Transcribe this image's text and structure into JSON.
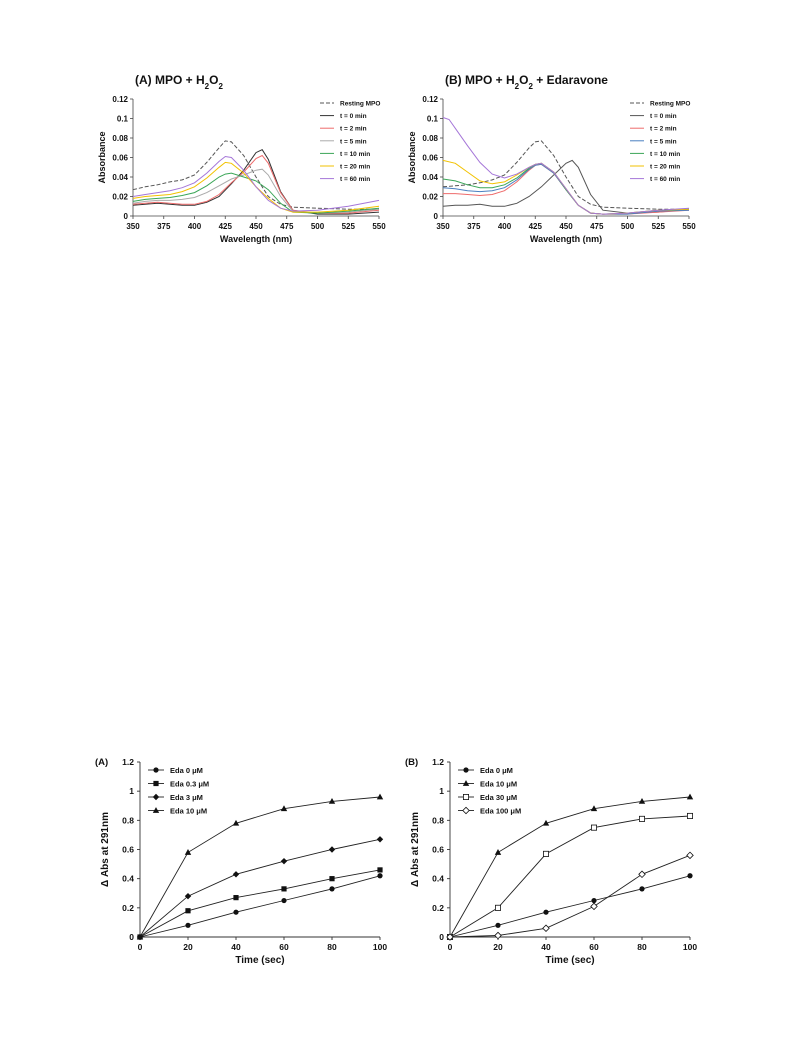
{
  "chart_data": [
    {
      "type": "line",
      "panel": "A",
      "title": "(A) MPO + H",
      "title_sub": "2",
      "title_mid": "O",
      "title_sub2": "2",
      "title_tail": "",
      "xlabel": "Wavelength  (nm)",
      "ylabel": "Absorbance",
      "xlim": [
        350,
        550
      ],
      "ylim": [
        0,
        0.12
      ],
      "xticks": [
        "350",
        "375",
        "400",
        "425",
        "450",
        "475",
        "500",
        "525",
        "550"
      ],
      "yticks": [
        "0",
        "0.02",
        "0.04",
        "0.06",
        "0.08",
        "0.1",
        "0.12"
      ],
      "legend_position": "top-right",
      "series": [
        {
          "name": "Resting MPO",
          "color": "#555555",
          "dash": true,
          "x": [
            350,
            360,
            370,
            380,
            390,
            400,
            410,
            420,
            425,
            430,
            440,
            450,
            455,
            460,
            470,
            480,
            500,
            525,
            550
          ],
          "y": [
            0.027,
            0.03,
            0.032,
            0.035,
            0.037,
            0.042,
            0.055,
            0.07,
            0.077,
            0.076,
            0.062,
            0.04,
            0.03,
            0.02,
            0.012,
            0.009,
            0.008,
            0.007,
            0.007
          ]
        },
        {
          "name": "t = 0 min",
          "color": "#333333",
          "dash": false,
          "x": [
            350,
            360,
            370,
            380,
            390,
            400,
            410,
            420,
            430,
            440,
            450,
            455,
            460,
            470,
            480,
            500,
            525,
            550
          ],
          "y": [
            0.011,
            0.012,
            0.013,
            0.012,
            0.011,
            0.011,
            0.014,
            0.02,
            0.033,
            0.047,
            0.065,
            0.068,
            0.058,
            0.025,
            0.006,
            0.002,
            0.002,
            0.004
          ]
        },
        {
          "name": "t = 2 min",
          "color": "#ee6b6b",
          "dash": false,
          "x": [
            350,
            360,
            370,
            380,
            390,
            400,
            410,
            420,
            430,
            440,
            450,
            455,
            460,
            470,
            480,
            500,
            525,
            550
          ],
          "y": [
            0.012,
            0.013,
            0.014,
            0.013,
            0.012,
            0.012,
            0.015,
            0.022,
            0.034,
            0.045,
            0.059,
            0.062,
            0.054,
            0.024,
            0.006,
            0.003,
            0.003,
            0.006
          ]
        },
        {
          "name": "t = 5 min",
          "color": "#aaaaaa",
          "dash": false,
          "x": [
            350,
            360,
            370,
            380,
            390,
            400,
            410,
            420,
            430,
            440,
            450,
            455,
            460,
            470,
            480,
            500,
            525,
            550
          ],
          "y": [
            0.013,
            0.015,
            0.016,
            0.016,
            0.017,
            0.019,
            0.024,
            0.031,
            0.038,
            0.042,
            0.047,
            0.048,
            0.042,
            0.02,
            0.005,
            0.003,
            0.004,
            0.007
          ]
        },
        {
          "name": "t = 10 min",
          "color": "#3aa657",
          "dash": false,
          "x": [
            350,
            360,
            370,
            380,
            390,
            400,
            410,
            420,
            425,
            430,
            440,
            450,
            460,
            470,
            480,
            500,
            525,
            550
          ],
          "y": [
            0.015,
            0.017,
            0.018,
            0.019,
            0.021,
            0.024,
            0.031,
            0.04,
            0.043,
            0.044,
            0.04,
            0.036,
            0.027,
            0.013,
            0.004,
            0.003,
            0.005,
            0.008
          ]
        },
        {
          "name": "t = 20 min",
          "color": "#f2c200",
          "dash": false,
          "x": [
            350,
            360,
            370,
            380,
            390,
            400,
            410,
            420,
            425,
            430,
            440,
            450,
            460,
            470,
            480,
            500,
            525,
            550
          ],
          "y": [
            0.018,
            0.02,
            0.021,
            0.022,
            0.025,
            0.03,
            0.039,
            0.05,
            0.055,
            0.054,
            0.044,
            0.03,
            0.018,
            0.008,
            0.004,
            0.004,
            0.006,
            0.01
          ]
        },
        {
          "name": "t = 60 min",
          "color": "#a576d8",
          "dash": false,
          "x": [
            350,
            360,
            370,
            380,
            390,
            400,
            410,
            420,
            425,
            430,
            440,
            450,
            460,
            470,
            480,
            500,
            525,
            550
          ],
          "y": [
            0.02,
            0.022,
            0.024,
            0.026,
            0.029,
            0.034,
            0.044,
            0.056,
            0.061,
            0.06,
            0.047,
            0.03,
            0.016,
            0.008,
            0.005,
            0.006,
            0.01,
            0.016
          ]
        }
      ]
    },
    {
      "type": "line",
      "panel": "B",
      "title": "(B) MPO + H",
      "title_sub": "2",
      "title_mid": "O",
      "title_sub2": "2",
      "title_tail": " + Edaravone",
      "xlabel": "Wavelength  (nm)",
      "ylabel": "Absorbance",
      "xlim": [
        350,
        550
      ],
      "ylim": [
        0,
        0.12
      ],
      "xticks": [
        "350",
        "375",
        "400",
        "425",
        "450",
        "475",
        "500",
        "525",
        "550"
      ],
      "yticks": [
        "0",
        "0.02",
        "0.04",
        "0.06",
        "0.08",
        "0.1",
        "0.12"
      ],
      "legend_position": "top-right",
      "series": [
        {
          "name": "Resting MPO",
          "color": "#555555",
          "dash": true,
          "x": [
            350,
            360,
            370,
            380,
            390,
            400,
            410,
            420,
            425,
            430,
            440,
            450,
            455,
            460,
            470,
            480,
            500,
            525,
            550
          ],
          "y": [
            0.03,
            0.031,
            0.032,
            0.034,
            0.037,
            0.042,
            0.055,
            0.07,
            0.076,
            0.077,
            0.062,
            0.04,
            0.03,
            0.02,
            0.012,
            0.009,
            0.008,
            0.007,
            0.007
          ]
        },
        {
          "name": "t = 0 min",
          "color": "#555555",
          "dash": false,
          "x": [
            350,
            360,
            370,
            380,
            390,
            400,
            410,
            420,
            430,
            440,
            450,
            455,
            460,
            470,
            480,
            500,
            525,
            550
          ],
          "y": [
            0.01,
            0.011,
            0.011,
            0.012,
            0.01,
            0.01,
            0.013,
            0.02,
            0.03,
            0.042,
            0.054,
            0.057,
            0.05,
            0.022,
            0.006,
            0.003,
            0.004,
            0.007
          ]
        },
        {
          "name": "t = 2 min",
          "color": "#ee6b6b",
          "dash": false,
          "x": [
            350,
            360,
            370,
            380,
            390,
            400,
            410,
            420,
            425,
            430,
            440,
            450,
            460,
            470,
            480,
            500,
            525,
            550
          ],
          "y": [
            0.023,
            0.023,
            0.022,
            0.021,
            0.022,
            0.026,
            0.035,
            0.047,
            0.052,
            0.053,
            0.044,
            0.027,
            0.011,
            0.003,
            0.002,
            0.002,
            0.004,
            0.006
          ]
        },
        {
          "name": "t = 5 min",
          "color": "#4a7fc0",
          "dash": false,
          "x": [
            350,
            360,
            370,
            380,
            390,
            400,
            410,
            420,
            425,
            430,
            440,
            450,
            460,
            470,
            480,
            500,
            525,
            550
          ],
          "y": [
            0.029,
            0.028,
            0.026,
            0.025,
            0.026,
            0.029,
            0.037,
            0.048,
            0.052,
            0.053,
            0.044,
            0.027,
            0.011,
            0.003,
            0.002,
            0.002,
            0.005,
            0.006
          ]
        },
        {
          "name": "t = 10 min",
          "color": "#3aa657",
          "dash": false,
          "x": [
            350,
            360,
            370,
            380,
            390,
            400,
            410,
            420,
            425,
            430,
            440,
            450,
            460,
            470,
            480,
            500,
            525,
            550
          ],
          "y": [
            0.038,
            0.036,
            0.032,
            0.029,
            0.029,
            0.032,
            0.039,
            0.049,
            0.053,
            0.054,
            0.045,
            0.027,
            0.011,
            0.003,
            0.002,
            0.003,
            0.006,
            0.007
          ]
        },
        {
          "name": "t = 20 min",
          "color": "#f2c200",
          "dash": false,
          "x": [
            350,
            360,
            370,
            380,
            390,
            400,
            410,
            420,
            425,
            430,
            440,
            450,
            460,
            470,
            480,
            500,
            525,
            550
          ],
          "y": [
            0.057,
            0.054,
            0.045,
            0.036,
            0.033,
            0.035,
            0.042,
            0.05,
            0.053,
            0.054,
            0.045,
            0.028,
            0.011,
            0.003,
            0.002,
            0.003,
            0.006,
            0.007
          ]
        },
        {
          "name": "t = 60 min",
          "color": "#a576d8",
          "dash": false,
          "x": [
            350,
            355,
            360,
            370,
            380,
            390,
            400,
            410,
            420,
            425,
            430,
            440,
            450,
            460,
            470,
            480,
            500,
            525,
            550
          ],
          "y": [
            0.101,
            0.099,
            0.09,
            0.072,
            0.055,
            0.043,
            0.039,
            0.043,
            0.05,
            0.053,
            0.054,
            0.045,
            0.028,
            0.011,
            0.003,
            0.002,
            0.003,
            0.006,
            0.008
          ]
        }
      ]
    },
    {
      "type": "line",
      "panel": "A",
      "title": "(A)",
      "xlabel": "Time (sec)",
      "ylabel": "Δ Abs at 291nm",
      "xlim": [
        0,
        100
      ],
      "ylim": [
        0,
        1.2
      ],
      "xticks": [
        "0",
        "20",
        "40",
        "60",
        "80",
        "100"
      ],
      "yticks": [
        "0",
        "0.2",
        "0.4",
        "0.6",
        "0.8",
        "1",
        "1.2"
      ],
      "legend_position": "top-left",
      "series": [
        {
          "name": "Eda 0 μM",
          "marker": "circle",
          "x": [
            0,
            20,
            40,
            60,
            80,
            100
          ],
          "y": [
            0,
            0.08,
            0.17,
            0.25,
            0.33,
            0.42
          ]
        },
        {
          "name": "Eda 0.3 μM",
          "marker": "square",
          "x": [
            0,
            20,
            40,
            60,
            80,
            100
          ],
          "y": [
            0,
            0.18,
            0.27,
            0.33,
            0.4,
            0.46
          ]
        },
        {
          "name": "Eda 3 μM",
          "marker": "diamond",
          "x": [
            0,
            20,
            40,
            60,
            80,
            100
          ],
          "y": [
            0,
            0.28,
            0.43,
            0.52,
            0.6,
            0.67
          ]
        },
        {
          "name": "Eda 10 μM",
          "marker": "triangle",
          "x": [
            0,
            20,
            40,
            60,
            80,
            100
          ],
          "y": [
            0,
            0.58,
            0.78,
            0.88,
            0.93,
            0.96
          ]
        }
      ]
    },
    {
      "type": "line",
      "panel": "B",
      "title": "(B)",
      "xlabel": "Time (sec)",
      "ylabel": "Δ Abs at 291nm",
      "xlim": [
        0,
        100
      ],
      "ylim": [
        0,
        1.2
      ],
      "xticks": [
        "0",
        "20",
        "40",
        "60",
        "80",
        "100"
      ],
      "yticks": [
        "0",
        "0.2",
        "0.4",
        "0.6",
        "0.8",
        "1",
        "1.2"
      ],
      "legend_position": "top-left",
      "series": [
        {
          "name": "Eda 0 μM",
          "marker": "circle",
          "x": [
            0,
            20,
            40,
            60,
            80,
            100
          ],
          "y": [
            0,
            0.08,
            0.17,
            0.25,
            0.33,
            0.42
          ]
        },
        {
          "name": "Eda 10 μM",
          "marker": "triangle",
          "x": [
            0,
            20,
            40,
            60,
            80,
            100
          ],
          "y": [
            0,
            0.58,
            0.78,
            0.88,
            0.93,
            0.96
          ]
        },
        {
          "name": "Eda 30 μM",
          "marker": "square-open",
          "x": [
            0,
            20,
            40,
            60,
            80,
            100
          ],
          "y": [
            0,
            0.2,
            0.57,
            0.75,
            0.81,
            0.83
          ]
        },
        {
          "name": "Eda 100 μM",
          "marker": "diamond-open",
          "x": [
            0,
            20,
            40,
            60,
            80,
            100
          ],
          "y": [
            0,
            0.01,
            0.06,
            0.21,
            0.43,
            0.56
          ]
        }
      ]
    }
  ]
}
